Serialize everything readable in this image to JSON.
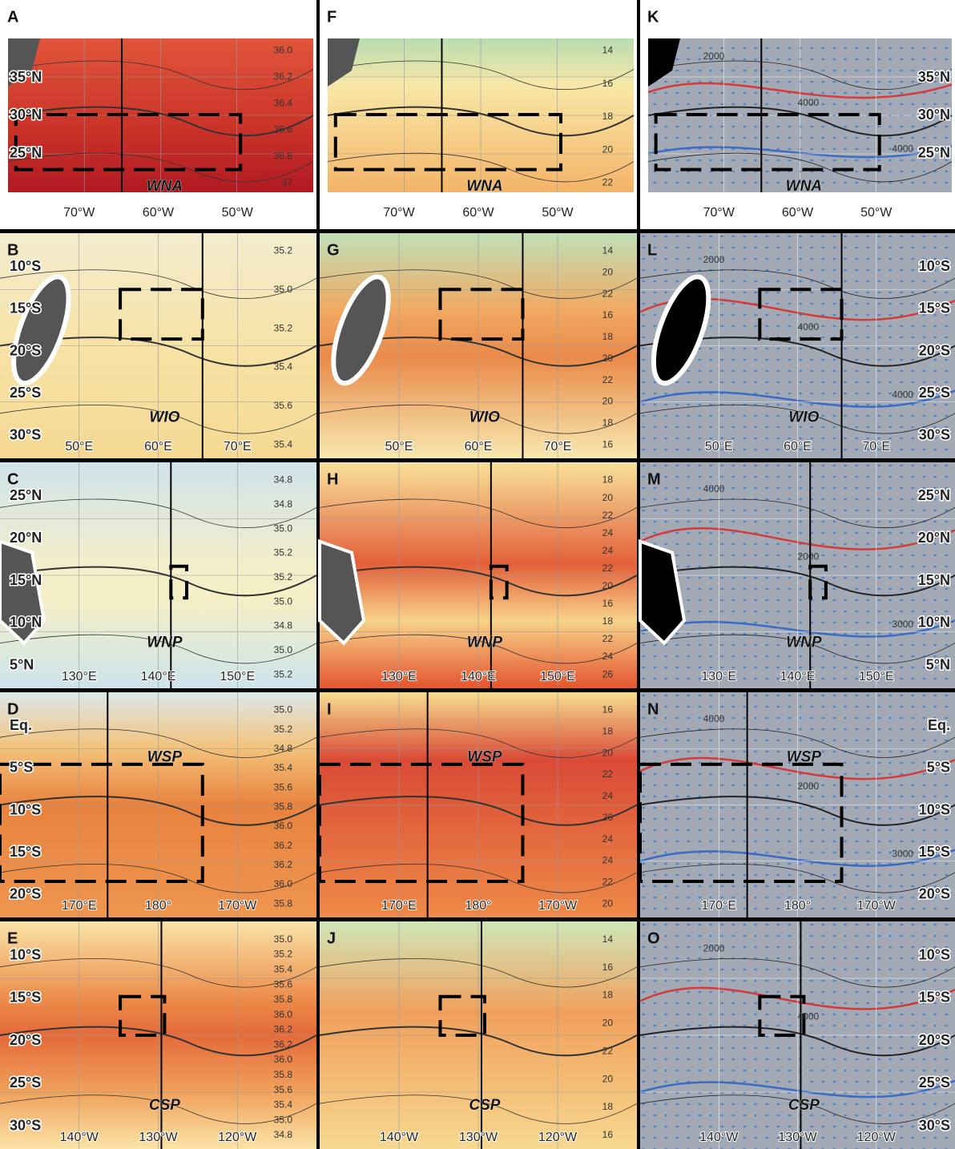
{
  "panels": [
    {
      "letter": "A",
      "region": "WNA",
      "lat_labels": [
        "35°N",
        "30°N",
        "25°N"
      ],
      "lon_labels": [
        "70°W",
        "60°W",
        "50°W"
      ],
      "contour_labels": [
        "36.0",
        "36.2",
        "36.4",
        "36.6",
        "36.8",
        "37"
      ]
    },
    {
      "letter": "B",
      "region": "WIO",
      "lat_labels": [
        "10°S",
        "15°S",
        "20°S",
        "25°S",
        "30°S"
      ],
      "lon_labels": [
        "50°E",
        "60°E",
        "70°E"
      ],
      "contour_labels": [
        "35.2",
        "35.0",
        "35.2",
        "35.4",
        "35.6",
        "35.4"
      ]
    },
    {
      "letter": "C",
      "region": "WNP",
      "lat_labels": [
        "25°N",
        "20°N",
        "15°N",
        "10°N",
        "5°N"
      ],
      "lon_labels": [
        "130°E",
        "140°E",
        "150°E"
      ],
      "contour_labels": [
        "34.8",
        "34.8",
        "35.0",
        "35.2",
        "35.2",
        "35.0",
        "34.8",
        "35.0",
        "35.2"
      ]
    },
    {
      "letter": "D",
      "region": "WSP",
      "lat_labels": [
        "Eq.",
        "5°S",
        "10°S",
        "15°S",
        "20°S"
      ],
      "lon_labels": [
        "170°E",
        "180°",
        "170°W"
      ],
      "contour_labels": [
        "35.0",
        "35.2",
        "34.8",
        "35.4",
        "35.6",
        "35.8",
        "36.0",
        "36.2",
        "36.2",
        "36.0",
        "35.8"
      ]
    },
    {
      "letter": "E",
      "region": "CSP",
      "lat_labels": [
        "10°S",
        "15°S",
        "20°S",
        "25°S",
        "30°S"
      ],
      "lon_labels": [
        "140°W",
        "130°W",
        "120°W"
      ],
      "contour_labels": [
        "35.0",
        "35.2",
        "35.4",
        "35.6",
        "35.8",
        "36.0",
        "36.2",
        "36.2",
        "36.0",
        "35.8",
        "35.6",
        "35.4",
        "35.0",
        "34.8"
      ]
    },
    {
      "letter": "F",
      "region": "WNA",
      "lon_labels": [
        "70°W",
        "60°W",
        "50°W"
      ],
      "contour_labels": [
        "14",
        "16",
        "18",
        "20",
        "22"
      ]
    },
    {
      "letter": "G",
      "region": "WIO",
      "lon_labels": [
        "50°E",
        "60°E",
        "70°E"
      ],
      "contour_labels": [
        "14",
        "20",
        "22",
        "16",
        "18",
        "20",
        "22",
        "20",
        "18",
        "16"
      ]
    },
    {
      "letter": "H",
      "region": "WNP",
      "lon_labels": [
        "130°E",
        "140°E",
        "150°E"
      ],
      "contour_labels": [
        "18",
        "20",
        "22",
        "24",
        "24",
        "22",
        "20",
        "16",
        "18",
        "22",
        "24",
        "26"
      ]
    },
    {
      "letter": "I",
      "region": "WSP",
      "lon_labels": [
        "170°E",
        "180°",
        "170°W"
      ],
      "contour_labels": [
        "16",
        "18",
        "20",
        "22",
        "24",
        "26",
        "24",
        "24",
        "22",
        "20"
      ]
    },
    {
      "letter": "J",
      "region": "CSP",
      "lon_labels": [
        "140°W",
        "130°W",
        "120°W"
      ],
      "contour_labels": [
        "14",
        "16",
        "18",
        "20",
        "22",
        "20",
        "18",
        "16"
      ]
    },
    {
      "letter": "K",
      "region": "WNA",
      "lat_labels": [
        "35°N",
        "30°N",
        "25°N"
      ],
      "lon_labels": [
        "70°W",
        "60°W",
        "50°W"
      ],
      "contour_labels": [
        "2000",
        "4000",
        "4000"
      ]
    },
    {
      "letter": "L",
      "region": "WIO",
      "lat_labels": [
        "10°S",
        "15°S",
        "20°S",
        "25°S",
        "30°S"
      ],
      "lon_labels": [
        "50°E",
        "60°E",
        "70°E"
      ],
      "contour_labels": [
        "2000",
        "4000",
        "4000"
      ]
    },
    {
      "letter": "M",
      "region": "WNP",
      "lat_labels": [
        "25°N",
        "20°N",
        "15°N",
        "10°N",
        "5°N"
      ],
      "lon_labels": [
        "130°E",
        "140°E",
        "150°E"
      ],
      "contour_labels": [
        "4000",
        "2000",
        "3000"
      ]
    },
    {
      "letter": "N",
      "region": "WSP",
      "lat_labels": [
        "Eq.",
        "5°S",
        "10°S",
        "15°S",
        "20°S"
      ],
      "lon_labels": [
        "170°E",
        "180°",
        "170°W"
      ],
      "contour_labels": [
        "4000",
        "2000",
        "3000"
      ]
    },
    {
      "letter": "O",
      "region": "CSP",
      "lat_labels": [
        "10°S",
        "15°S",
        "20°S",
        "25°S",
        "30°S"
      ],
      "lon_labels": [
        "140°W",
        "130°W",
        "120°W"
      ],
      "contour_labels": [
        "2000",
        "4000"
      ]
    }
  ]
}
